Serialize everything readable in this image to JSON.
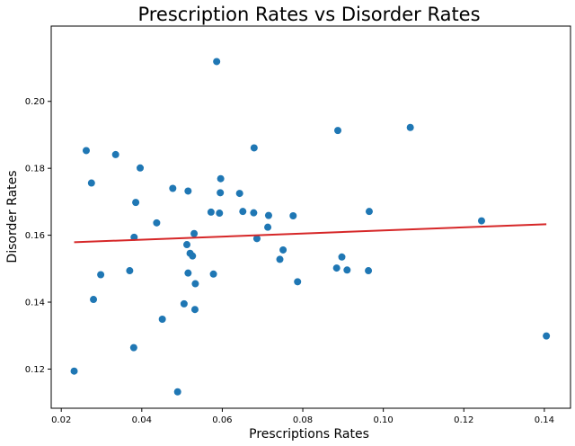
{
  "chart_data": {
    "type": "scatter",
    "title": "Prescription Rates vs Disorder Rates",
    "xlabel": "Prescriptions Rates",
    "ylabel": "Disorder Rates",
    "xlim": [
      0.0175,
      0.1465
    ],
    "ylim": [
      0.1083,
      0.2225
    ],
    "xticks": [
      "0.02",
      "0.04",
      "0.06",
      "0.08",
      "0.10",
      "0.12",
      "0.14"
    ],
    "yticks": [
      "0.12",
      "0.14",
      "0.16",
      "0.18",
      "0.20"
    ],
    "grid": false,
    "legend": "none",
    "point_color": "#1f77b4",
    "line_color": "#d62728",
    "series": [
      {
        "points": [
          [
            0.0232,
            0.1194
          ],
          [
            0.0262,
            0.1853
          ],
          [
            0.0275,
            0.1756
          ],
          [
            0.028,
            0.1408
          ],
          [
            0.0298,
            0.1482
          ],
          [
            0.0335,
            0.1841
          ],
          [
            0.037,
            0.1494
          ],
          [
            0.038,
            0.1264
          ],
          [
            0.0381,
            0.1594
          ],
          [
            0.0385,
            0.1698
          ],
          [
            0.0396,
            0.1801
          ],
          [
            0.0437,
            0.1637
          ],
          [
            0.0451,
            0.1349
          ],
          [
            0.0477,
            0.174
          ],
          [
            0.0489,
            0.1132
          ],
          [
            0.0505,
            0.1395
          ],
          [
            0.0512,
            0.1572
          ],
          [
            0.0515,
            0.1732
          ],
          [
            0.0515,
            0.1487
          ],
          [
            0.052,
            0.1546
          ],
          [
            0.0526,
            0.1538
          ],
          [
            0.053,
            0.1605
          ],
          [
            0.0532,
            0.1378
          ],
          [
            0.0533,
            0.1455
          ],
          [
            0.0572,
            0.1669
          ],
          [
            0.0578,
            0.1484
          ],
          [
            0.0586,
            0.2119
          ],
          [
            0.0593,
            0.1666
          ],
          [
            0.0595,
            0.1727
          ],
          [
            0.0596,
            0.1769
          ],
          [
            0.0643,
            0.1725
          ],
          [
            0.0651,
            0.1671
          ],
          [
            0.0678,
            0.1667
          ],
          [
            0.0679,
            0.1861
          ],
          [
            0.0686,
            0.159
          ],
          [
            0.0713,
            0.1624
          ],
          [
            0.0715,
            0.1659
          ],
          [
            0.0743,
            0.1528
          ],
          [
            0.0751,
            0.1556
          ],
          [
            0.0776,
            0.1658
          ],
          [
            0.0787,
            0.1461
          ],
          [
            0.0884,
            0.1502
          ],
          [
            0.0887,
            0.1913
          ],
          [
            0.0897,
            0.1535
          ],
          [
            0.091,
            0.1496
          ],
          [
            0.0963,
            0.1494
          ],
          [
            0.0965,
            0.1671
          ],
          [
            0.1067,
            0.1922
          ],
          [
            0.1244,
            0.1643
          ],
          [
            0.1405,
            0.1299
          ]
        ]
      }
    ],
    "trendline": {
      "x": [
        0.0232,
        0.1405
      ],
      "y": [
        0.1579,
        0.1633
      ]
    }
  }
}
